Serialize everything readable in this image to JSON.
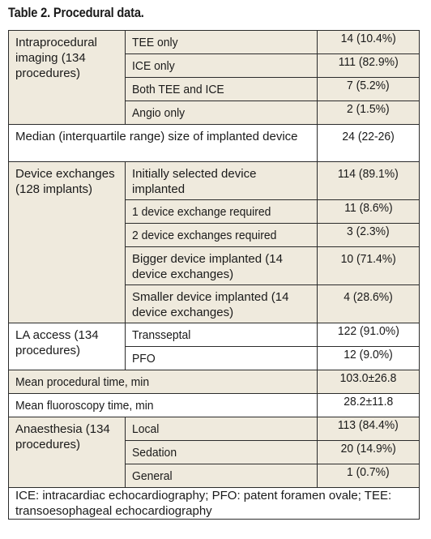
{
  "title": "Table 2. Procedural data.",
  "sections": {
    "imaging": {
      "label": "Intraprocedural imaging (134 procedures)",
      "rows": [
        {
          "label": "TEE only",
          "value": "14 (10.4%)"
        },
        {
          "label": "ICE only",
          "value": "111 (82.9%)"
        },
        {
          "label": "Both TEE and ICE",
          "value": "7 (5.2%)"
        },
        {
          "label": "Angio only",
          "value": "2 (1.5%)"
        }
      ]
    },
    "median_size": {
      "label": "Median (interquartile range) size of implanted device",
      "value": "24 (22-26)"
    },
    "exchanges": {
      "label": "Device exchanges (128 implants)",
      "rows": [
        {
          "label": "Initially selected device implanted",
          "value": "114 (89.1%)"
        },
        {
          "label": "1 device exchange required",
          "value": "11 (8.6%)"
        },
        {
          "label": "2 device exchanges required",
          "value": "3 (2.3%)"
        },
        {
          "label": "Bigger device implanted (14 device exchanges)",
          "value": "10 (71.4%)"
        },
        {
          "label": "Smaller device implanted (14 device exchanges)",
          "value": "4 (28.6%)"
        }
      ]
    },
    "la_access": {
      "label": "LA access (134 procedures)",
      "rows": [
        {
          "label": "Transseptal",
          "value": "122 (91.0%)"
        },
        {
          "label": "PFO",
          "value": "12 (9.0%)"
        }
      ]
    },
    "procedural_time": {
      "label": "Mean procedural time, min",
      "value": "103.0±26.8"
    },
    "fluoroscopy_time": {
      "label": "Mean fluoroscopy time, min",
      "value": "28.2±11.8"
    },
    "anaesthesia": {
      "label": "Anaesthesia (134 procedures)",
      "rows": [
        {
          "label": "Local",
          "value": "113 (84.4%)"
        },
        {
          "label": "Sedation",
          "value": "20 (14.9%)"
        },
        {
          "label": "General",
          "value": "1 (0.7%)"
        }
      ]
    }
  },
  "footnote": "ICE: intracardiac echocardiography; PFO: patent foramen ovale; TEE: transoesophageal echocardiography",
  "colors": {
    "section_bg": "#efeadd",
    "plain_bg": "#ffffff",
    "border": "#2b2b2b"
  }
}
